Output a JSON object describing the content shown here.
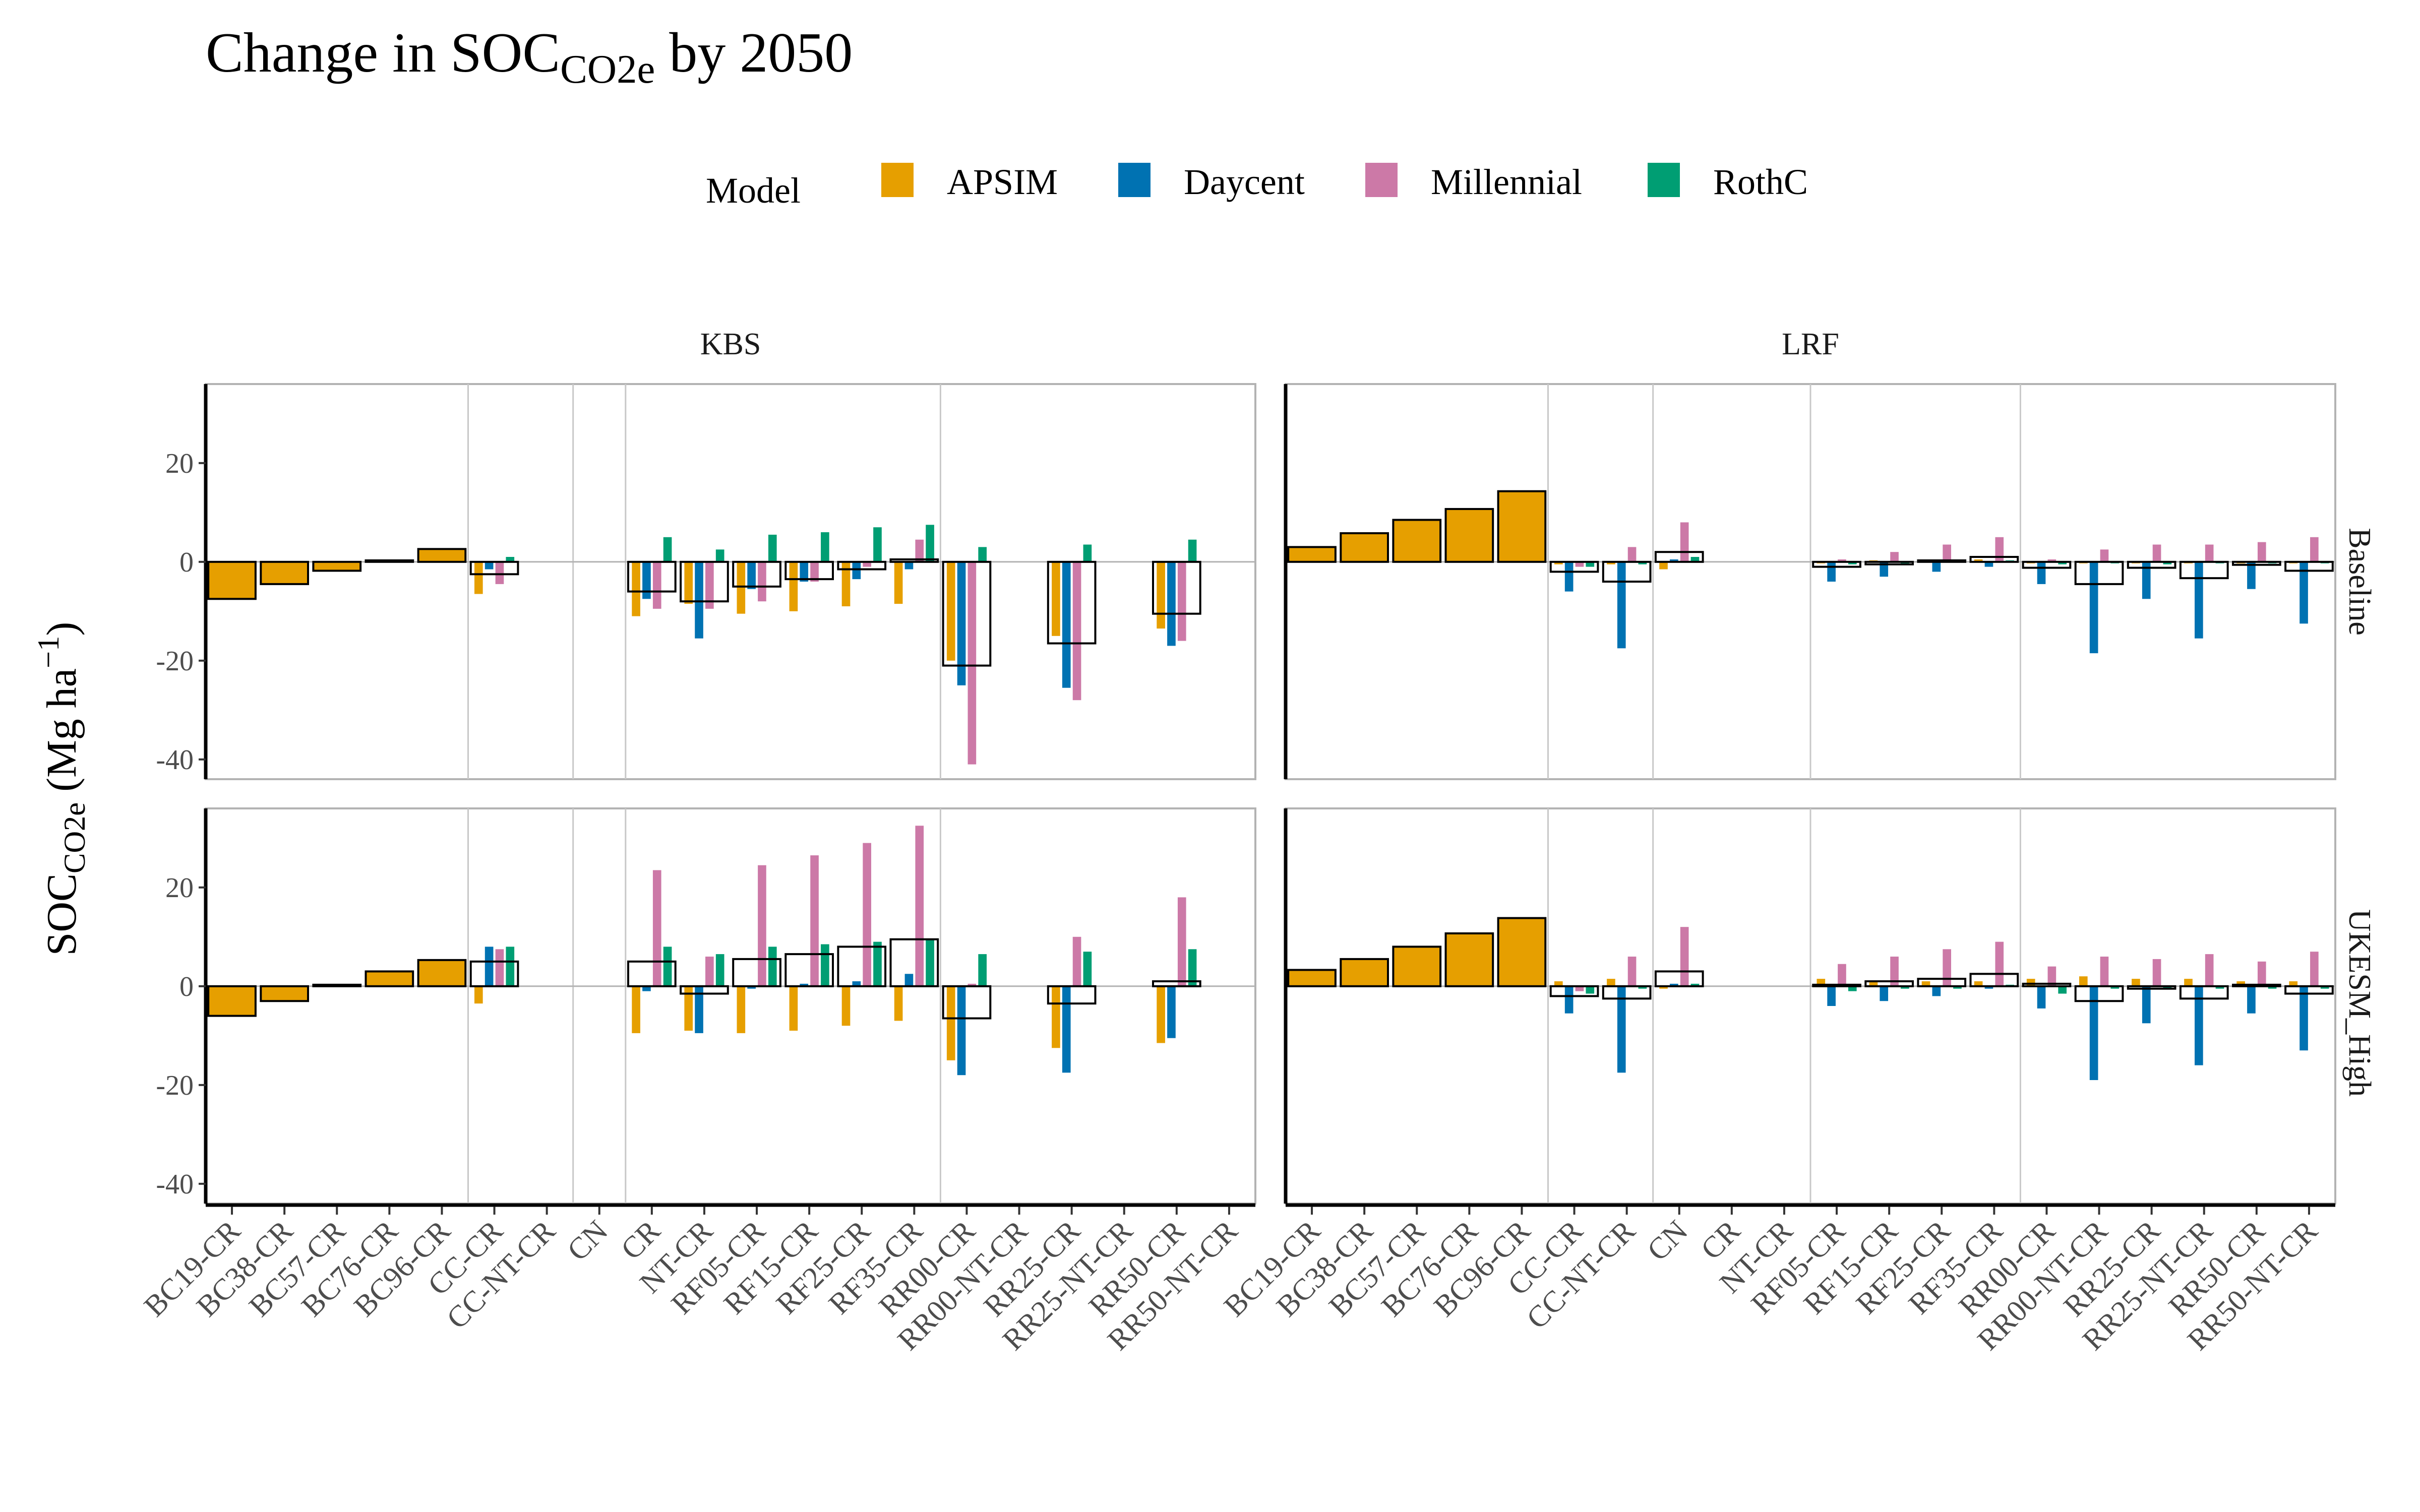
{
  "title": {
    "main": "Change in SOC",
    "sub": "CO2e",
    "tail": " by 2050"
  },
  "ylabel": {
    "main": "SOC",
    "sub": "CO2e",
    "unit": " (Mg ha",
    "sup": "−1",
    "close": ")"
  },
  "legend": {
    "title": "Model",
    "items": [
      {
        "name": "APSIM",
        "color": "#E69F00"
      },
      {
        "name": "Daycent",
        "color": "#0072B2"
      },
      {
        "name": "Millennial",
        "color": "#CC79A7"
      },
      {
        "name": "RothC",
        "color": "#009E73"
      }
    ]
  },
  "chart_data": {
    "type": "bar",
    "ylim": [
      -44,
      36
    ],
    "yticks": [
      -40,
      -20,
      0,
      20
    ],
    "columns": [
      "KBS",
      "LRF"
    ],
    "rows": [
      "Baseline",
      "UKESM_High"
    ],
    "series_names": [
      "APSIM",
      "Daycent",
      "Millennial",
      "RothC",
      "Mean"
    ],
    "categories": {
      "KBS": [
        "BC19-CR",
        "BC38-CR",
        "BC57-CR",
        "BC76-CR",
        "BC96-CR",
        "CC-CR",
        "CC-NT-CR",
        "CN",
        "CR",
        "NT-CR",
        "RF05-CR",
        "RF15-CR",
        "RF25-CR",
        "RF35-CR",
        "RR00-CR",
        "RR00-NT-CR",
        "RR25-CR",
        "RR25-NT-CR",
        "RR50-CR",
        "RR50-NT-CR"
      ],
      "LRF": [
        "BC19-CR",
        "BC38-CR",
        "BC57-CR",
        "BC76-CR",
        "BC96-CR",
        "CC-CR",
        "CC-NT-CR",
        "CN",
        "CR",
        "NT-CR",
        "RF05-CR",
        "RF15-CR",
        "RF25-CR",
        "RF35-CR",
        "RR00-CR",
        "RR00-NT-CR",
        "RR25-CR",
        "RR25-NT-CR",
        "RR50-CR",
        "RR50-NT-CR"
      ]
    },
    "vlines_after": {
      "KBS": [
        4,
        6,
        7,
        13
      ],
      "LRF": [
        4,
        6,
        9,
        13
      ]
    },
    "panels": [
      {
        "site": "KBS",
        "scenario": "Baseline",
        "groups": [
          {
            "category": "BC19-CR",
            "single": -7.5
          },
          {
            "category": "BC38-CR",
            "single": -4.5
          },
          {
            "category": "BC57-CR",
            "single": -1.8
          },
          {
            "category": "BC76-CR",
            "single": 0.3
          },
          {
            "category": "BC96-CR",
            "single": 2.6
          },
          {
            "category": "CC-CR",
            "APSIM": -6.5,
            "Daycent": -1.5,
            "Millennial": -4.5,
            "RothC": 1.0,
            "mean": -2.5
          },
          {
            "category": "CR",
            "APSIM": -11,
            "Daycent": -7.5,
            "Millennial": -9.5,
            "RothC": 5.0,
            "mean": -6.0
          },
          {
            "category": "NT-CR",
            "APSIM": -8.5,
            "Daycent": -15.5,
            "Millennial": -9.5,
            "RothC": 2.5,
            "mean": -8.0
          },
          {
            "category": "RF05-CR",
            "APSIM": -10.5,
            "Daycent": -5.5,
            "Millennial": -8.0,
            "RothC": 5.5,
            "mean": -5.0
          },
          {
            "category": "RF15-CR",
            "APSIM": -10.0,
            "Daycent": -4.0,
            "Millennial": -4.0,
            "RothC": 6.0,
            "mean": -3.5
          },
          {
            "category": "RF25-CR",
            "APSIM": -9.0,
            "Daycent": -3.5,
            "Millennial": -1.0,
            "RothC": 7.0,
            "mean": -1.5
          },
          {
            "category": "RF35-CR",
            "APSIM": -8.5,
            "Daycent": -1.5,
            "Millennial": 4.5,
            "RothC": 7.5,
            "mean": 0.5
          },
          {
            "category": "RR00-CR",
            "APSIM": -20,
            "Daycent": -25,
            "Millennial": -41,
            "RothC": 3.0,
            "mean": -21
          },
          {
            "category": "RR25-CR",
            "APSIM": -15,
            "Daycent": -25.5,
            "Millennial": -28,
            "RothC": 3.5,
            "mean": -16.5
          },
          {
            "category": "RR50-CR",
            "APSIM": -13.5,
            "Daycent": -17,
            "Millennial": -16,
            "RothC": 4.5,
            "mean": -10.5
          }
        ]
      },
      {
        "site": "LRF",
        "scenario": "Baseline",
        "groups": [
          {
            "category": "BC19-CR",
            "single": 3.0
          },
          {
            "category": "BC38-CR",
            "single": 5.8
          },
          {
            "category": "BC57-CR",
            "single": 8.5
          },
          {
            "category": "BC76-CR",
            "single": 10.7
          },
          {
            "category": "BC96-CR",
            "single": 14.3
          },
          {
            "category": "CC-CR",
            "APSIM": -0.5,
            "Daycent": -6.0,
            "Millennial": -1.0,
            "RothC": -1.0,
            "mean": -2.0
          },
          {
            "category": "CC-NT-CR",
            "APSIM": -0.5,
            "Daycent": -17.5,
            "Millennial": 3.0,
            "RothC": -0.5,
            "mean": -4.0
          },
          {
            "category": "CN",
            "APSIM": -1.5,
            "Daycent": 0.5,
            "Millennial": 8.0,
            "RothC": 1.0,
            "mean": 2.0
          },
          {
            "category": "RF05-CR",
            "APSIM": -0.3,
            "Daycent": -4.0,
            "Millennial": 0.5,
            "RothC": -0.5,
            "mean": -1.0
          },
          {
            "category": "RF15-CR",
            "APSIM": 0.3,
            "Daycent": -3.0,
            "Millennial": 2.0,
            "RothC": -0.3,
            "mean": -0.5
          },
          {
            "category": "RF25-CR",
            "APSIM": 0.3,
            "Daycent": -2.0,
            "Millennial": 3.5,
            "RothC": 0.3,
            "mean": 0.3
          },
          {
            "category": "RF35-CR",
            "APSIM": 0.5,
            "Daycent": -1.0,
            "Millennial": 5.0,
            "RothC": 0.3,
            "mean": 1.0
          },
          {
            "category": "RR00-CR",
            "APSIM": -0.3,
            "Daycent": -4.5,
            "Millennial": 0.5,
            "RothC": -0.5,
            "mean": -1.2
          },
          {
            "category": "RR00-NT-CR",
            "APSIM": -0.3,
            "Daycent": -18.5,
            "Millennial": 2.5,
            "RothC": -0.3,
            "mean": -4.5
          },
          {
            "category": "RR25-CR",
            "APSIM": -0.3,
            "Daycent": -7.5,
            "Millennial": 3.5,
            "RothC": -0.5,
            "mean": -1.2
          },
          {
            "category": "RR25-NT-CR",
            "APSIM": -0.3,
            "Daycent": -15.5,
            "Millennial": 3.5,
            "RothC": -0.3,
            "mean": -3.3
          },
          {
            "category": "RR50-CR",
            "APSIM": -0.3,
            "Daycent": -5.5,
            "Millennial": 4.0,
            "RothC": -0.3,
            "mean": -0.6
          },
          {
            "category": "RR50-NT-CR",
            "APSIM": -0.3,
            "Daycent": -12.5,
            "Millennial": 5.0,
            "RothC": -0.3,
            "mean": -1.8
          }
        ]
      },
      {
        "site": "KBS",
        "scenario": "UKESM_High",
        "groups": [
          {
            "category": "BC19-CR",
            "single": -6.0
          },
          {
            "category": "BC38-CR",
            "single": -3.0
          },
          {
            "category": "BC57-CR",
            "single": 0.3
          },
          {
            "category": "BC76-CR",
            "single": 3.0
          },
          {
            "category": "BC96-CR",
            "single": 5.3
          },
          {
            "category": "CC-CR",
            "APSIM": -3.5,
            "Daycent": 8.0,
            "Millennial": 7.5,
            "RothC": 8.0,
            "mean": 5.0
          },
          {
            "category": "CR",
            "APSIM": -9.5,
            "Daycent": -1.0,
            "Millennial": 23.5,
            "RothC": 8.0,
            "mean": 5.0
          },
          {
            "category": "NT-CR",
            "APSIM": -9.0,
            "Daycent": -9.5,
            "Millennial": 6.0,
            "RothC": 6.5,
            "mean": -1.5
          },
          {
            "category": "RF05-CR",
            "APSIM": -9.5,
            "Daycent": -0.5,
            "Millennial": 24.5,
            "RothC": 8.0,
            "mean": 5.5
          },
          {
            "category": "RF15-CR",
            "APSIM": -9.0,
            "Daycent": 0.5,
            "Millennial": 26.5,
            "RothC": 8.5,
            "mean": 6.5
          },
          {
            "category": "RF25-CR",
            "APSIM": -8.0,
            "Daycent": 1.0,
            "Millennial": 29.0,
            "RothC": 9.0,
            "mean": 8.0
          },
          {
            "category": "RF35-CR",
            "APSIM": -7.0,
            "Daycent": 2.5,
            "Millennial": 32.5,
            "RothC": 9.5,
            "mean": 9.5
          },
          {
            "category": "RR00-CR",
            "APSIM": -15.0,
            "Daycent": -18.0,
            "Millennial": 0.5,
            "RothC": 6.5,
            "mean": -6.5
          },
          {
            "category": "RR25-CR",
            "APSIM": -12.5,
            "Daycent": -17.5,
            "Millennial": 10.0,
            "RothC": 7.0,
            "mean": -3.5
          },
          {
            "category": "RR50-CR",
            "APSIM": -11.5,
            "Daycent": -10.5,
            "Millennial": 18.0,
            "RothC": 7.5,
            "mean": 1.0
          }
        ]
      },
      {
        "site": "LRF",
        "scenario": "UKESM_High",
        "groups": [
          {
            "category": "BC19-CR",
            "single": 3.3
          },
          {
            "category": "BC38-CR",
            "single": 5.5
          },
          {
            "category": "BC57-CR",
            "single": 8.0
          },
          {
            "category": "BC76-CR",
            "single": 10.7
          },
          {
            "category": "BC96-CR",
            "single": 13.8
          },
          {
            "category": "CC-CR",
            "APSIM": 1.0,
            "Daycent": -5.5,
            "Millennial": -1.0,
            "RothC": -1.5,
            "mean": -2.0
          },
          {
            "category": "CC-NT-CR",
            "APSIM": 1.5,
            "Daycent": -17.5,
            "Millennial": 6.0,
            "RothC": -0.5,
            "mean": -2.5
          },
          {
            "category": "CN",
            "APSIM": -0.5,
            "Daycent": 0.5,
            "Millennial": 12.0,
            "RothC": 0.5,
            "mean": 3.0
          },
          {
            "category": "RF05-CR",
            "APSIM": 1.5,
            "Daycent": -4.0,
            "Millennial": 4.5,
            "RothC": -1.0,
            "mean": 0.3
          },
          {
            "category": "RF15-CR",
            "APSIM": 1.0,
            "Daycent": -3.0,
            "Millennial": 6.0,
            "RothC": -0.5,
            "mean": 1.0
          },
          {
            "category": "RF25-CR",
            "APSIM": 1.0,
            "Daycent": -2.0,
            "Millennial": 7.5,
            "RothC": -0.5,
            "mean": 1.5
          },
          {
            "category": "RF35-CR",
            "APSIM": 1.0,
            "Daycent": -0.5,
            "Millennial": 9.0,
            "RothC": 0.3,
            "mean": 2.5
          },
          {
            "category": "RR00-CR",
            "APSIM": 1.5,
            "Daycent": -4.5,
            "Millennial": 4.0,
            "RothC": -1.5,
            "mean": 0.5
          },
          {
            "category": "RR00-NT-CR",
            "APSIM": 2.0,
            "Daycent": -19.0,
            "Millennial": 6.0,
            "RothC": -0.5,
            "mean": -3.0
          },
          {
            "category": "RR25-CR",
            "APSIM": 1.5,
            "Daycent": -7.5,
            "Millennial": 5.5,
            "RothC": -0.5,
            "mean": -0.5
          },
          {
            "category": "RR25-NT-CR",
            "APSIM": 1.5,
            "Daycent": -16.0,
            "Millennial": 6.5,
            "RothC": -0.5,
            "mean": -2.5
          },
          {
            "category": "RR50-CR",
            "APSIM": 1.0,
            "Daycent": -5.5,
            "Millennial": 5.0,
            "RothC": -0.5,
            "mean": 0.3
          },
          {
            "category": "RR50-NT-CR",
            "APSIM": 1.0,
            "Daycent": -13.0,
            "Millennial": 7.0,
            "RothC": -0.5,
            "mean": -1.5
          }
        ]
      }
    ]
  }
}
